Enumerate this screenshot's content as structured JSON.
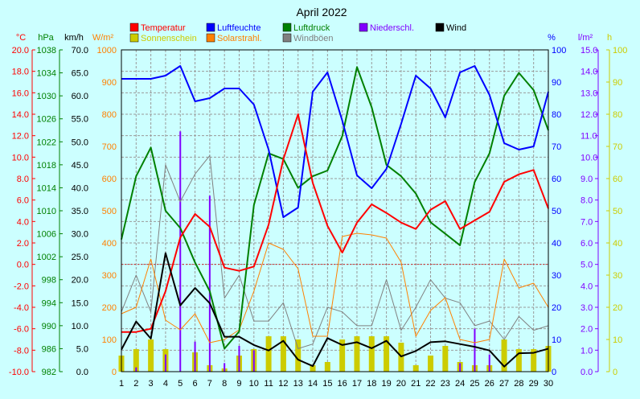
{
  "chart_data": {
    "type": "line",
    "title": "April 2022",
    "x": [
      1,
      2,
      3,
      4,
      5,
      6,
      7,
      8,
      9,
      10,
      11,
      12,
      13,
      14,
      15,
      16,
      17,
      18,
      19,
      20,
      21,
      22,
      23,
      24,
      25,
      26,
      27,
      28,
      29,
      30
    ],
    "x_tick_labels": [
      "1",
      "2",
      "3",
      "4",
      "5",
      "6",
      "7",
      "8",
      "9",
      "10",
      "11",
      "12",
      "13",
      "14",
      "15",
      "16",
      "17",
      "18",
      "19",
      "20",
      "21",
      "22",
      "23",
      "24",
      "25",
      "26",
      "27",
      "28",
      "29",
      "30"
    ],
    "grid": true,
    "axes": [
      {
        "id": "temp",
        "unit": "°C",
        "color": "#ff0000",
        "min": -10,
        "max": 20,
        "ticks": [
          "20.0",
          "18.0",
          "16.0",
          "14.0",
          "12.0",
          "10.0",
          "8.0",
          "6.0",
          "4.0",
          "2.0",
          "0.0",
          "-2.0",
          "-4.0",
          "-6.0",
          "-8.0",
          "-10.0"
        ]
      },
      {
        "id": "pres",
        "unit": "hPa",
        "color": "#008000",
        "min": 982,
        "max": 1038,
        "ticks": [
          "1038",
          "1034",
          "1030",
          "1026",
          "1022",
          "1018",
          "1014",
          "1010",
          "1006",
          "1002",
          "998",
          "994",
          "990",
          "986",
          "982"
        ]
      },
      {
        "id": "wind",
        "unit": "km/h",
        "color": "#000000",
        "min": 0,
        "max": 70,
        "ticks": [
          "70.0",
          "65.0",
          "60.0",
          "55.0",
          "50.0",
          "45.0",
          "40.0",
          "35.0",
          "30.0",
          "25.0",
          "20.0",
          "15.0",
          "10.0",
          "5.0",
          "0.0"
        ]
      },
      {
        "id": "rad",
        "unit": "W/m²",
        "color": "#ff8000",
        "min": 0,
        "max": 1000,
        "ticks": [
          "1000",
          "900",
          "800",
          "700",
          "600",
          "500",
          "400",
          "300",
          "200",
          "100",
          "0"
        ]
      },
      {
        "id": "hum",
        "unit": "%",
        "color": "#0000ff",
        "min": 0,
        "max": 100,
        "ticks": [
          "100",
          "90",
          "80",
          "70",
          "60",
          "50",
          "40",
          "30",
          "20",
          "10",
          "0"
        ]
      },
      {
        "id": "rain",
        "unit": "l/m²",
        "color": "#8000ff",
        "min": 0,
        "max": 15,
        "ticks": [
          "15.0",
          "14.0",
          "13.0",
          "12.0",
          "11.0",
          "10.0",
          "9.0",
          "8.0",
          "7.0",
          "6.0",
          "5.0",
          "4.0",
          "3.0",
          "2.0",
          "1.0",
          "0.0"
        ]
      },
      {
        "id": "sun",
        "unit": "h",
        "color": "#cccc00",
        "min": 0,
        "max": 100,
        "ticks": [
          "100",
          "90",
          "80",
          "70",
          "60",
          "50",
          "40",
          "30",
          "20",
          "10",
          "0"
        ]
      }
    ],
    "reference_line_temp": 0.0,
    "series": [
      {
        "name": "Temperatur",
        "axis": "temp",
        "type": "line",
        "color": "#ff0000",
        "values": [
          -6.3,
          -6.3,
          -6.0,
          -2.5,
          2.5,
          4.7,
          3.5,
          -0.3,
          -0.6,
          -0.2,
          3.7,
          9.8,
          14.0,
          7.6,
          3.6,
          1.1,
          3.9,
          5.6,
          4.8,
          3.9,
          3.3,
          5.1,
          5.9,
          3.3,
          4.1,
          4.9,
          7.7,
          8.4,
          8.8,
          5.2
        ]
      },
      {
        "name": "Sonnenschein",
        "axis": "sun",
        "type": "bar",
        "color": "#cccc00",
        "values": [
          5,
          7,
          10,
          7,
          0,
          6,
          2,
          1,
          5,
          7,
          11,
          11,
          10,
          2,
          3,
          10,
          11,
          11,
          11,
          9,
          2,
          5,
          8,
          3,
          2,
          2,
          10,
          7,
          7,
          8
        ]
      },
      {
        "name": "Luftfeuchte",
        "axis": "hum",
        "type": "line",
        "color": "#0000ff",
        "values": [
          91,
          91,
          91,
          92,
          95,
          84,
          85,
          88,
          88,
          83,
          69,
          48,
          51,
          87,
          93,
          78,
          61,
          57,
          63,
          77,
          92,
          88,
          79,
          93,
          95,
          86,
          71,
          69,
          70,
          87
        ]
      },
      {
        "name": "Solarstrahl.",
        "axis": "rad",
        "type": "line",
        "color": "#ff8000",
        "values": [
          180,
          200,
          350,
          160,
          130,
          180,
          90,
          100,
          130,
          250,
          400,
          380,
          320,
          110,
          110,
          420,
          430,
          425,
          415,
          340,
          110,
          190,
          230,
          100,
          90,
          100,
          350,
          260,
          275,
          200
        ]
      },
      {
        "name": "Luftdruck",
        "axis": "pres",
        "type": "line",
        "color": "#008000",
        "values": [
          1005,
          1016,
          1021,
          1010,
          1007,
          1001,
          996,
          986,
          989,
          1011,
          1020,
          1019,
          1014,
          1016,
          1017,
          1023,
          1035,
          1028,
          1018,
          1016,
          1013,
          1008,
          1006,
          1004,
          1015,
          1020,
          1030,
          1034,
          1031,
          1024
        ]
      },
      {
        "name": "Niederschl.",
        "axis": "rain",
        "type": "bar",
        "color": "#8000ff",
        "values": [
          0,
          0.2,
          0,
          0.8,
          11.2,
          1.4,
          8.2,
          0.4,
          1.2,
          1.0,
          0,
          0,
          0,
          0,
          0,
          0,
          0,
          0,
          0,
          0,
          0,
          0,
          0,
          0.4,
          2.0,
          0.8,
          0,
          0,
          0,
          0
        ]
      },
      {
        "name": "Windböen",
        "axis": "wind",
        "type": "line",
        "color": "#808080",
        "values": [
          13,
          21,
          13,
          45,
          37,
          43,
          47,
          16,
          21,
          11,
          11,
          15,
          5,
          6,
          14,
          13,
          10,
          10,
          20,
          9,
          14,
          20,
          16,
          15,
          10,
          11,
          7,
          12,
          9,
          10
        ]
      },
      {
        "name": "Wind",
        "axis": "wind",
        "type": "line",
        "color": "#000000",
        "values": [
          4.8,
          10.9,
          7.2,
          25.8,
          14.4,
          18.2,
          14.9,
          7.6,
          7.6,
          5.8,
          4.6,
          6.7,
          2.6,
          1.2,
          7.3,
          5.8,
          6.4,
          5.1,
          6.7,
          3.3,
          4.5,
          6.4,
          6.6,
          6.0,
          5.4,
          4.6,
          1.1,
          4.0,
          4.1,
          5.0
        ]
      }
    ]
  }
}
